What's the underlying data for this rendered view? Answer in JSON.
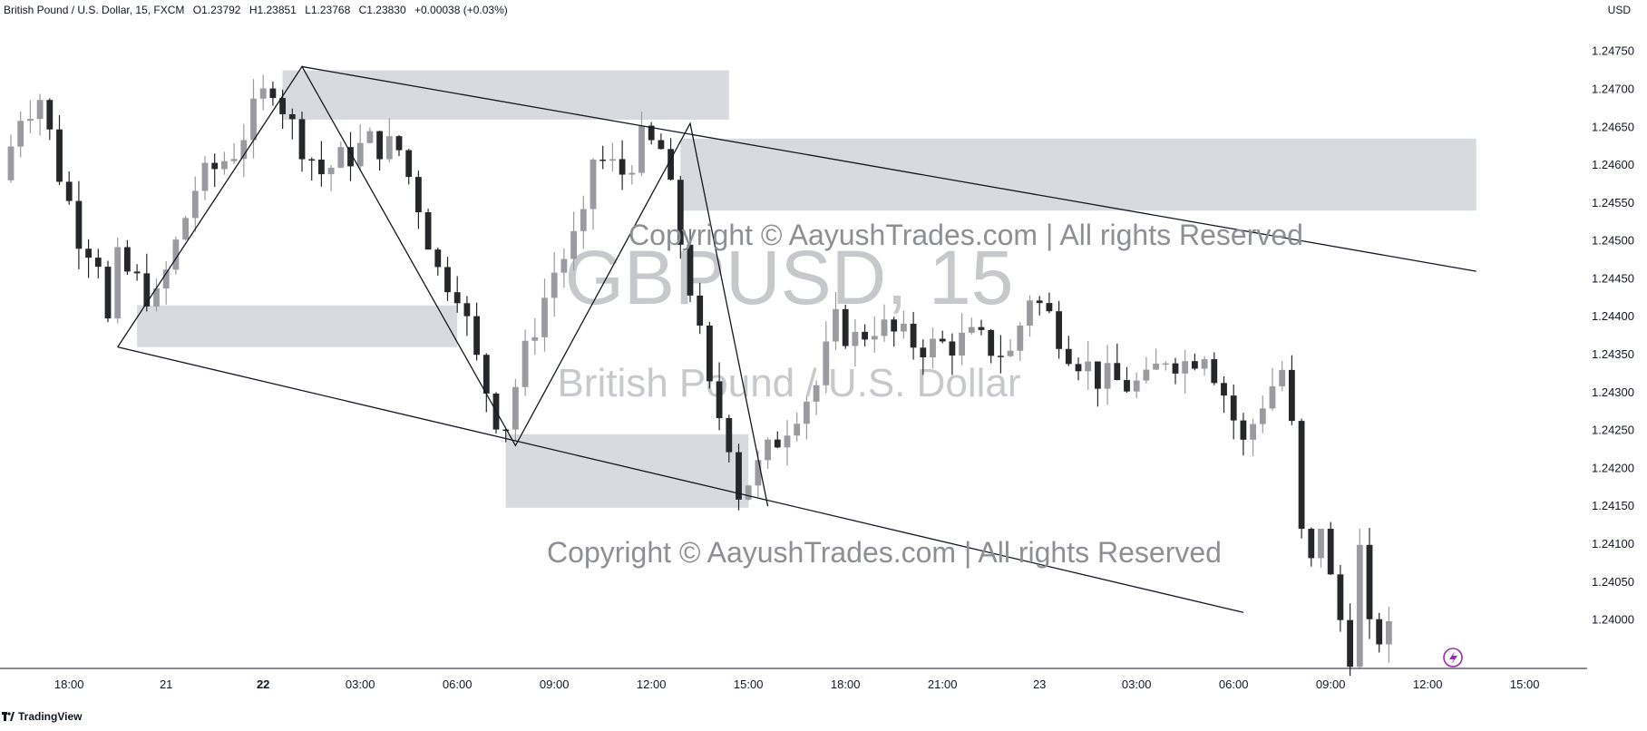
{
  "legend": {
    "symbol": "British Pound / U.S. Dollar, 15, FXCM",
    "open": "O1.23792",
    "high": "H1.23851",
    "low": "L1.23768",
    "close": "C1.23830",
    "change": "+0.00038 (+0.03%)"
  },
  "currency": "USD",
  "footer": {
    "brand": "TradingView"
  },
  "watermark": {
    "symbol": "GBPUSD, 15",
    "name": "British Pound / U.S. Dollar",
    "copyright_top": "Copyright © AayushTrades.com | All rights Reserved",
    "copyright_bottom": "Copyright © AayushTrades.com | All rights Reserved"
  },
  "colors": {
    "up": "#9a9aa0",
    "down": "#26272b",
    "zone": "#d9dadf",
    "line": "#131722",
    "watermark": "#c7c8cc",
    "copyright": "#8e8f95",
    "bolt": "#9c27b0"
  },
  "chart_data": {
    "type": "candlestick",
    "ylim": [
      1.2396,
      1.2479
    ],
    "xlim": [
      0,
      178
    ],
    "y_ticks": [
      "1.24750",
      "1.24700",
      "1.24650",
      "1.24600",
      "1.24550",
      "1.24500",
      "1.24450",
      "1.24400",
      "1.24350",
      "1.24300",
      "1.24250",
      "1.24200",
      "1.24150",
      "1.24100",
      "1.24050",
      "1.24000"
    ],
    "x_ticks": [
      {
        "i": 6,
        "label": "18:00",
        "bold": false
      },
      {
        "i": 16,
        "label": "21",
        "bold": false
      },
      {
        "i": 26,
        "label": "22",
        "bold": true
      },
      {
        "i": 36,
        "label": "03:00",
        "bold": false
      },
      {
        "i": 46,
        "label": "06:00",
        "bold": false
      },
      {
        "i": 56,
        "label": "09:00",
        "bold": false
      },
      {
        "i": 66,
        "label": "12:00",
        "bold": false
      },
      {
        "i": 76,
        "label": "15:00",
        "bold": false
      },
      {
        "i": 86,
        "label": "18:00",
        "bold": false
      },
      {
        "i": 96,
        "label": "21:00",
        "bold": false
      },
      {
        "i": 106,
        "label": "23",
        "bold": false
      },
      {
        "i": 116,
        "label": "03:00",
        "bold": false
      },
      {
        "i": 126,
        "label": "06:00",
        "bold": false
      },
      {
        "i": 136,
        "label": "09:00",
        "bold": false
      },
      {
        "i": 146,
        "label": "12:00",
        "bold": false
      },
      {
        "i": 156,
        "label": "15:00",
        "bold": false
      }
    ],
    "anchors": [
      [
        0,
        1.2458
      ],
      [
        2,
        1.2467
      ],
      [
        4,
        1.2469
      ],
      [
        6,
        1.2459
      ],
      [
        8,
        1.2451
      ],
      [
        10,
        1.2448
      ],
      [
        11,
        1.2439
      ],
      [
        12,
        1.2447
      ],
      [
        16,
        1.2442
      ],
      [
        20,
        1.2457
      ],
      [
        24,
        1.2462
      ],
      [
        27,
        1.2469
      ],
      [
        28,
        1.2471
      ],
      [
        30,
        1.2465
      ],
      [
        33,
        1.2459
      ],
      [
        38,
        1.2463
      ],
      [
        41,
        1.2462
      ],
      [
        43,
        1.2455
      ],
      [
        45,
        1.2446
      ],
      [
        47,
        1.2444
      ],
      [
        49,
        1.2434
      ],
      [
        51,
        1.2427
      ],
      [
        52,
        1.2426
      ],
      [
        53,
        1.2431
      ],
      [
        55,
        1.2439
      ],
      [
        57,
        1.2446
      ],
      [
        60,
        1.2452
      ],
      [
        61,
        1.2461
      ],
      [
        64,
        1.2459
      ],
      [
        66,
        1.2463
      ],
      [
        68,
        1.2462
      ],
      [
        70,
        1.245
      ],
      [
        71,
        1.2444
      ],
      [
        73,
        1.243
      ],
      [
        75,
        1.2424
      ],
      [
        76,
        1.2417
      ],
      [
        78,
        1.242
      ],
      [
        80,
        1.2424
      ],
      [
        82,
        1.2428
      ],
      [
        84,
        1.2431
      ],
      [
        86,
        1.2439
      ],
      [
        88,
        1.2437
      ],
      [
        90,
        1.2439
      ],
      [
        93,
        1.2437
      ],
      [
        96,
        1.2436
      ],
      [
        100,
        1.2437
      ],
      [
        104,
        1.2435
      ],
      [
        106,
        1.2443
      ],
      [
        108,
        1.244
      ],
      [
        110,
        1.2436
      ],
      [
        113,
        1.2432
      ],
      [
        116,
        1.2431
      ],
      [
        118,
        1.2431
      ],
      [
        120,
        1.2435
      ],
      [
        122,
        1.2434
      ],
      [
        124,
        1.2436
      ],
      [
        126,
        1.243
      ],
      [
        128,
        1.2423
      ],
      [
        130,
        1.2429
      ],
      [
        132,
        1.2433
      ],
      [
        133,
        1.2425
      ],
      [
        134,
        1.2411
      ],
      [
        135,
        1.2407
      ],
      [
        136,
        1.2413
      ],
      [
        137,
        1.2405
      ],
      [
        138,
        1.24
      ],
      [
        139,
        1.2396
      ],
      [
        140,
        1.2409
      ],
      [
        141,
        1.2398
      ],
      [
        142,
        1.2398
      ]
    ],
    "zones": [
      {
        "i0": 28,
        "i1": 74,
        "y0": 1.2466,
        "y1": 1.24725
      },
      {
        "i0": 69,
        "i1": 151,
        "y0": 1.2454,
        "y1": 1.24635
      },
      {
        "i0": 13,
        "i1": 46,
        "y0": 1.2436,
        "y1": 1.24415
      },
      {
        "i0": 51,
        "i1": 76,
        "y0": 1.24148,
        "y1": 1.24245
      }
    ],
    "lines": [
      {
        "i0": 30,
        "y0": 1.2473,
        "i1": 151,
        "y1": 1.2446
      },
      {
        "i0": 11,
        "y0": 1.2436,
        "i1": 127,
        "y1": 1.2401
      }
    ],
    "zigzag": [
      [
        11,
        1.2436
      ],
      [
        30,
        1.2473
      ],
      [
        52,
        1.2423
      ],
      [
        70,
        1.24655
      ],
      [
        78,
        1.2415
      ]
    ]
  }
}
